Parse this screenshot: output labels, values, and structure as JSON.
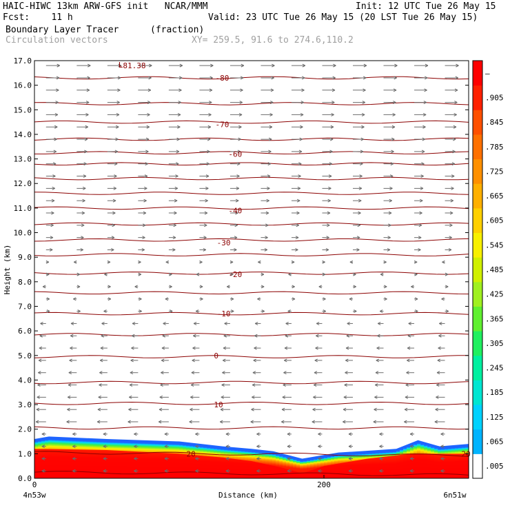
{
  "header": {
    "line1_left": "HAIC-HIWC 13km ARW-GFS init   NCAR/MMM",
    "line1_right": "Init: 12 UTC Tue 26 May 15",
    "line2_left": "Fcst:    11 h",
    "line2_right": "Valid: 23 UTC Tue 26 May 15 (20 LST Tue 26 May 15)",
    "line3_left": "Boundary Layer Tracer",
    "line3_units": "(fraction)",
    "line4_left": "Circulation vectors",
    "line4_xy": "XY= 259.5, 91.6 to 274.6,110.2"
  },
  "chart_data": {
    "type": "heatmap",
    "title": "Boundary Layer Tracer",
    "units": "(fraction)",
    "overlay": "Circulation vectors",
    "xlabel": "Distance (km)",
    "ylabel": "Height (km)",
    "xlim": [
      0,
      300
    ],
    "ylim": [
      0,
      17
    ],
    "x_ticks": [
      {
        "value": 0,
        "label": "0"
      },
      {
        "value": 200,
        "label": "200"
      }
    ],
    "x_end_labels": {
      "left": "4n53w",
      "right": "6n51w"
    },
    "y_ticks": [
      "0.0",
      "1.0",
      "2.0",
      "3.0",
      "4.0",
      "5.0",
      "6.0",
      "7.0",
      "8.0",
      "9.0",
      "10.0",
      "11.0",
      "12.0",
      "13.0",
      "14.0",
      "15.0",
      "16.0",
      "17.0"
    ],
    "colorbar": {
      "labels": [
        ".005",
        ".065",
        ".125",
        ".185",
        ".245",
        ".305",
        ".365",
        ".425",
        ".485",
        ".545",
        ".605",
        ".665",
        ".725",
        ".785",
        ".845",
        ".905",
        "–"
      ],
      "colors": [
        "#ffffff",
        "#00b4ff",
        "#00d2ff",
        "#00e6d2",
        "#00f0a0",
        "#20f060",
        "#60f030",
        "#a0f020",
        "#d0f000",
        "#f8f000",
        "#ffd000",
        "#ffb000",
        "#ff9000",
        "#ff7000",
        "#ff5000",
        "#ff2000",
        "#ff0000"
      ]
    },
    "tracer_top_km": {
      "x": [
        0,
        10,
        50,
        100,
        130,
        150,
        165,
        175,
        185,
        190,
        210,
        225,
        250,
        265,
        280,
        300
      ],
      "y": [
        1.6,
        1.7,
        1.6,
        1.5,
        1.3,
        1.2,
        1.1,
        0.95,
        0.8,
        0.85,
        1.05,
        1.1,
        1.2,
        1.55,
        1.3,
        1.4
      ]
    },
    "tracer_max_top_km": {
      "x": [
        0,
        50,
        100,
        130,
        150,
        170,
        185,
        200,
        230,
        260,
        300
      ],
      "y": [
        1.2,
        1.15,
        1.0,
        0.85,
        0.7,
        0.45,
        0.2,
        0.5,
        0.8,
        1.0,
        1.0
      ]
    },
    "contours": [
      {
        "label": "-81.38",
        "x": 58,
        "y": 16.8
      },
      {
        "label": "-80",
        "x": 125,
        "y": 16.3
      },
      {
        "label": "-70",
        "x": 125,
        "y": 14.4
      },
      {
        "label": "-60",
        "x": 134,
        "y": 13.2
      },
      {
        "label": "-40",
        "x": 134,
        "y": 10.9
      },
      {
        "label": "-30",
        "x": 126,
        "y": 9.6
      },
      {
        "label": "-20",
        "x": 134,
        "y": 8.3
      },
      {
        "label": "-10",
        "x": 126,
        "y": 6.7
      },
      {
        "label": "0",
        "x": 124,
        "y": 5.0
      },
      {
        "label": "10",
        "x": 124,
        "y": 3.0
      },
      {
        "label": "20",
        "x": 105,
        "y": 1.0
      },
      {
        "label": "20",
        "x": 295,
        "y": 1.0
      }
    ],
    "contour_levels_km": [
      0.25,
      1.05,
      2.05,
      3.05,
      3.9,
      4.95,
      5.85,
      6.7,
      7.55,
      8.35,
      9.1,
      9.7,
      10.35,
      11.0,
      11.6,
      12.2,
      12.8,
      13.25,
      13.8,
      14.5,
      15.25,
      16.3
    ],
    "label_L": "L"
  }
}
